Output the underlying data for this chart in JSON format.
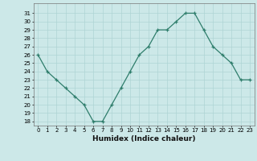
{
  "x": [
    0,
    1,
    2,
    3,
    4,
    5,
    6,
    7,
    8,
    9,
    10,
    11,
    12,
    13,
    14,
    15,
    16,
    17,
    18,
    19,
    20,
    21,
    22,
    23
  ],
  "y": [
    26,
    24,
    23,
    22,
    21,
    20,
    18,
    18,
    20,
    22,
    24,
    26,
    27,
    29,
    29,
    30,
    31,
    31,
    29,
    27,
    26,
    25,
    23,
    23
  ],
  "xlabel": "Humidex (Indice chaleur)",
  "ylim": [
    17.5,
    32.2
  ],
  "xlim": [
    -0.5,
    23.5
  ],
  "yticks": [
    18,
    19,
    20,
    21,
    22,
    23,
    24,
    25,
    26,
    27,
    28,
    29,
    30,
    31
  ],
  "xticks": [
    0,
    1,
    2,
    3,
    4,
    5,
    6,
    7,
    8,
    9,
    10,
    11,
    12,
    13,
    14,
    15,
    16,
    17,
    18,
    19,
    20,
    21,
    22,
    23
  ],
  "line_color": "#2e7d6b",
  "marker": "+",
  "bg_color": "#cce8e8",
  "grid_color": "#aed4d4"
}
